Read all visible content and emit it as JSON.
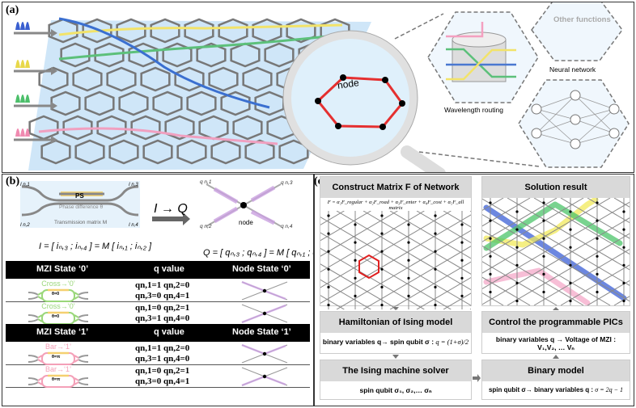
{
  "panel_a": {
    "label": "(a)",
    "magnifier_label": "node",
    "insets": [
      {
        "label": "Wavelength routing"
      },
      {
        "label": "Other functions"
      },
      {
        "label": "Neural network"
      }
    ],
    "pulse_colors": [
      "#3a5fd0",
      "#e8d84a",
      "#4cbf6a",
      "#f08ab0"
    ],
    "path_colors": {
      "blue": "#3a6fd0",
      "yellow": "#f2e36a",
      "green": "#5cc07a",
      "pink": "#f0a0c0",
      "node_ring": "#e53030"
    }
  },
  "panel_b": {
    "label": "(b)",
    "mzi": {
      "ps": "PS",
      "phase": "Phase difference θ",
      "matrix": "Transmission matrix M",
      "ports": [
        "I",
        "n,1",
        "n,2",
        "n,3",
        "n,4"
      ]
    },
    "arrow": "I → Q",
    "node_label": "node",
    "eq_I": {
      "lhs": "I =",
      "top": "i",
      "mid": "= M"
    },
    "eq_Q": {
      "lhs": "Q =",
      "mid": "= M"
    },
    "q_ports": [
      "q n,1",
      "q n,2",
      "q n,3",
      "q n,4"
    ],
    "table": {
      "state0_header": [
        "MZI State ‘0’",
        "q value",
        "Node State ‘0’"
      ],
      "state1_header": [
        "MZI State ‘1’",
        "q value",
        "Node State ‘1’"
      ],
      "rows0": [
        {
          "mzi": "Cross→‘0’",
          "theta": "θ=0",
          "q1": "qn,1=1  qn,2=0",
          "q2": "qn,3=0  qn,4=1"
        },
        {
          "mzi": "Cross→‘0’",
          "theta": "θ=0",
          "q1": "qn,1=0  qn,2=1",
          "q2": "qn,3=1  qn,4=0"
        }
      ],
      "rows1": [
        {
          "mzi": "Bar→‘1’",
          "theta": "θ=π",
          "q1": "qn,1=1  qn,2=0",
          "q2": "qn,3=1  qn,4=0"
        },
        {
          "mzi": "Bar→‘1’",
          "theta": "θ=π",
          "q1": "qn,1=0  qn,2=1",
          "q2": "qn,3=0  qn,4=1"
        }
      ]
    }
  },
  "panel_c": {
    "label": "(c)",
    "construct": {
      "title": "Construct Matrix F of  Network",
      "formula": "F = α₁F_regular + α₂F_road + α₃F_enter + α₄F_cost + α₅F_all matrix"
    },
    "solution": {
      "title": "Solution result"
    },
    "hamiltonian": {
      "title": "Hamiltonian of Ising model",
      "text": "binary variables q→ spin qubit σ :",
      "formula": "q = (1+σ)/2"
    },
    "control": {
      "title": "Control the programmable PICs",
      "text1": "binary variables q → Voltage of MZI  :",
      "text2": "V₁,V₂, … Vₙ"
    },
    "solver": {
      "title": "The Ising machine solver",
      "text": "spin qubit σ₁, σ₂,… σₙ"
    },
    "binary": {
      "title": "Binary model",
      "text": "spin qubit σ→ binary variables q :",
      "formula": "σ = 2q − 1"
    },
    "route_colors": [
      "#3b5fd6",
      "#f2ea5a",
      "#4cc46a",
      "#f4a8c8"
    ]
  }
}
